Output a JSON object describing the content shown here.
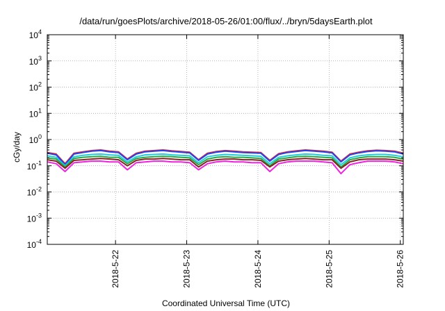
{
  "chart_data": {
    "type": "line",
    "title": "/data/run/goesPlots/archive/2018-05-26/01:00/flux/../bryn/5daysEarth.plot",
    "xlabel": "Coordinated Universal Time (UTC)",
    "ylabel": "cGy/day",
    "yscale": "log",
    "ylim": [
      0.0001,
      10000
    ],
    "xlim": [
      "2018-05-21 01:00",
      "2018-05-26 01:00"
    ],
    "grid": true,
    "legend": "none",
    "yticks": [
      {
        "base": "10",
        "exp": "-4"
      },
      {
        "base": "10",
        "exp": "-3"
      },
      {
        "base": "10",
        "exp": "-2"
      },
      {
        "base": "10",
        "exp": "-1"
      },
      {
        "base": "10",
        "exp": "0"
      },
      {
        "base": "10",
        "exp": "1"
      },
      {
        "base": "10",
        "exp": "2"
      },
      {
        "base": "10",
        "exp": "3"
      },
      {
        "base": "10",
        "exp": "4"
      }
    ],
    "xticks": [
      {
        "label": "2018-5-22",
        "value": "2018-05-22 00:00"
      },
      {
        "label": "2018-5-23",
        "value": "2018-05-23 00:00"
      },
      {
        "label": "2018-5-24",
        "value": "2018-05-24 00:00"
      },
      {
        "label": "2018-5-25",
        "value": "2018-05-25 00:00"
      },
      {
        "label": "2018-5-26",
        "value": "2018-05-26 00:00"
      }
    ],
    "x": [
      "2018-05-21 01:00",
      "2018-05-21 04:00",
      "2018-05-21 07:00",
      "2018-05-21 10:00",
      "2018-05-21 13:00",
      "2018-05-21 16:00",
      "2018-05-21 19:00",
      "2018-05-21 22:00",
      "2018-05-22 01:00",
      "2018-05-22 04:00",
      "2018-05-22 07:00",
      "2018-05-22 10:00",
      "2018-05-22 13:00",
      "2018-05-22 16:00",
      "2018-05-22 19:00",
      "2018-05-22 22:00",
      "2018-05-23 01:00",
      "2018-05-23 04:00",
      "2018-05-23 07:00",
      "2018-05-23 10:00",
      "2018-05-23 13:00",
      "2018-05-23 16:00",
      "2018-05-23 19:00",
      "2018-05-23 22:00",
      "2018-05-24 01:00",
      "2018-05-24 04:00",
      "2018-05-24 07:00",
      "2018-05-24 10:00",
      "2018-05-24 13:00",
      "2018-05-24 16:00",
      "2018-05-24 19:00",
      "2018-05-24 22:00",
      "2018-05-25 01:00",
      "2018-05-25 04:00",
      "2018-05-25 07:00",
      "2018-05-25 10:00",
      "2018-05-25 13:00",
      "2018-05-25 16:00",
      "2018-05-25 19:00",
      "2018-05-25 22:00",
      "2018-05-26 01:00"
    ],
    "series": [
      {
        "color": "#e8202a",
        "values": [
          0.32,
          0.28,
          0.12,
          0.3,
          0.34,
          0.38,
          0.4,
          0.36,
          0.34,
          0.18,
          0.3,
          0.36,
          0.38,
          0.4,
          0.37,
          0.35,
          0.33,
          0.17,
          0.3,
          0.35,
          0.38,
          0.36,
          0.34,
          0.33,
          0.32,
          0.16,
          0.29,
          0.34,
          0.37,
          0.4,
          0.38,
          0.36,
          0.33,
          0.15,
          0.28,
          0.33,
          0.37,
          0.39,
          0.38,
          0.36,
          0.3
        ]
      },
      {
        "color": "#2244ee",
        "values": [
          0.3,
          0.26,
          0.11,
          0.28,
          0.32,
          0.36,
          0.38,
          0.34,
          0.32,
          0.17,
          0.28,
          0.34,
          0.36,
          0.38,
          0.35,
          0.33,
          0.31,
          0.16,
          0.28,
          0.33,
          0.36,
          0.34,
          0.32,
          0.31,
          0.3,
          0.15,
          0.27,
          0.32,
          0.35,
          0.38,
          0.36,
          0.34,
          0.31,
          0.14,
          0.26,
          0.31,
          0.35,
          0.37,
          0.36,
          0.34,
          0.28
        ]
      },
      {
        "color": "#22ccdd",
        "values": [
          0.24,
          0.21,
          0.1,
          0.22,
          0.25,
          0.27,
          0.28,
          0.26,
          0.25,
          0.14,
          0.22,
          0.26,
          0.27,
          0.28,
          0.26,
          0.25,
          0.24,
          0.13,
          0.22,
          0.25,
          0.27,
          0.26,
          0.25,
          0.24,
          0.23,
          0.12,
          0.21,
          0.24,
          0.26,
          0.28,
          0.27,
          0.25,
          0.24,
          0.11,
          0.2,
          0.24,
          0.26,
          0.27,
          0.27,
          0.25,
          0.22
        ]
      },
      {
        "color": "#22aa44",
        "values": [
          0.2,
          0.18,
          0.09,
          0.19,
          0.21,
          0.22,
          0.23,
          0.21,
          0.21,
          0.12,
          0.19,
          0.21,
          0.22,
          0.23,
          0.22,
          0.21,
          0.2,
          0.11,
          0.18,
          0.21,
          0.22,
          0.21,
          0.21,
          0.2,
          0.19,
          0.1,
          0.18,
          0.2,
          0.22,
          0.23,
          0.22,
          0.21,
          0.2,
          0.09,
          0.17,
          0.2,
          0.22,
          0.22,
          0.22,
          0.21,
          0.18
        ]
      },
      {
        "color": "#882222",
        "values": [
          0.17,
          0.15,
          0.08,
          0.16,
          0.17,
          0.18,
          0.19,
          0.18,
          0.17,
          0.1,
          0.16,
          0.18,
          0.18,
          0.19,
          0.18,
          0.17,
          0.17,
          0.09,
          0.15,
          0.17,
          0.18,
          0.18,
          0.17,
          0.17,
          0.16,
          0.09,
          0.15,
          0.17,
          0.18,
          0.19,
          0.18,
          0.17,
          0.17,
          0.08,
          0.14,
          0.17,
          0.18,
          0.18,
          0.18,
          0.17,
          0.15
        ]
      },
      {
        "color": "#ee22dd",
        "values": [
          0.14,
          0.12,
          0.06,
          0.13,
          0.14,
          0.15,
          0.15,
          0.14,
          0.14,
          0.07,
          0.13,
          0.14,
          0.15,
          0.15,
          0.14,
          0.14,
          0.13,
          0.07,
          0.12,
          0.14,
          0.15,
          0.14,
          0.14,
          0.13,
          0.13,
          0.06,
          0.12,
          0.14,
          0.15,
          0.15,
          0.15,
          0.14,
          0.13,
          0.05,
          0.11,
          0.13,
          0.15,
          0.15,
          0.15,
          0.14,
          0.12
        ]
      }
    ]
  }
}
